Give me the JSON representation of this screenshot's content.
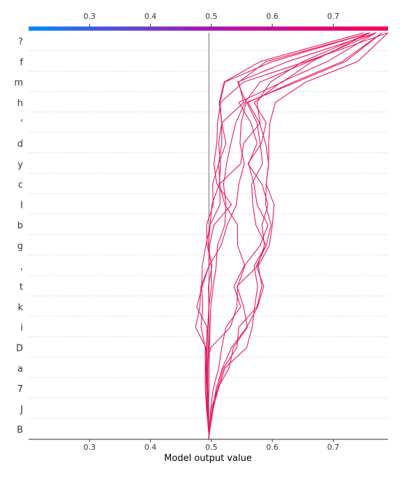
{
  "chart_data": {
    "type": "line",
    "title": "",
    "xlabel": "Model output value",
    "ylabel": "",
    "xlim": [
      0.2,
      0.79
    ],
    "x_ticks": [
      "0.3",
      "0.4",
      "0.5",
      "0.6",
      "0.7"
    ],
    "x_tick_values": [
      0.3,
      0.4,
      0.5,
      0.6,
      0.7
    ],
    "base_value": 0.496,
    "features": [
      "?",
      "f",
      "m",
      "h",
      "'",
      "d",
      "y",
      "c",
      "I",
      "b",
      "g",
      ",",
      "t",
      "k",
      "i",
      "D",
      "a",
      "7",
      "J",
      "B"
    ],
    "series_color": "#e8155f",
    "colorbar": {
      "colors": [
        "#008bfb",
        "#5a4fd6",
        "#a818b3",
        "#d80a88",
        "#ff0052"
      ],
      "range": [
        0.2,
        0.79
      ]
    },
    "series": [
      {
        "values": [
          0.496,
          0.494,
          0.496,
          0.496,
          0.497,
          0.498,
          0.499,
          0.503,
          0.508,
          0.51,
          0.522,
          0.524,
          0.52,
          0.525,
          0.532,
          0.54,
          0.555,
          0.58,
          0.66,
          0.77
        ]
      },
      {
        "values": [
          0.496,
          0.495,
          0.494,
          0.494,
          0.495,
          0.496,
          0.496,
          0.5,
          0.5,
          0.495,
          0.498,
          0.514,
          0.514,
          0.512,
          0.524,
          0.517,
          0.514,
          0.522,
          0.6,
          0.76
        ]
      },
      {
        "values": [
          0.496,
          0.495,
          0.493,
          0.493,
          0.493,
          0.494,
          0.496,
          0.495,
          0.501,
          0.493,
          0.492,
          0.503,
          0.502,
          0.512,
          0.517,
          0.517,
          0.513,
          0.521,
          0.58,
          0.75
        ]
      },
      {
        "values": [
          0.496,
          0.493,
          0.49,
          0.49,
          0.49,
          0.483,
          0.486,
          0.484,
          0.485,
          0.491,
          0.498,
          0.501,
          0.513,
          0.515,
          0.512,
          0.517,
          0.553,
          0.545,
          0.59,
          0.76
        ]
      },
      {
        "values": [
          0.496,
          0.494,
          0.492,
          0.491,
          0.492,
          0.493,
          0.476,
          0.485,
          0.496,
          0.516,
          0.526,
          0.541,
          0.545,
          0.554,
          0.547,
          0.549,
          0.557,
          0.543,
          0.625,
          0.77
        ]
      },
      {
        "values": [
          0.496,
          0.493,
          0.493,
          0.492,
          0.491,
          0.474,
          0.481,
          0.483,
          0.496,
          0.497,
          0.504,
          0.533,
          0.509,
          0.504,
          0.509,
          0.51,
          0.515,
          0.553,
          0.655,
          0.79
        ]
      },
      {
        "values": [
          0.496,
          0.492,
          0.49,
          0.49,
          0.499,
          0.531,
          0.542,
          0.543,
          0.555,
          0.543,
          0.543,
          0.522,
          0.513,
          0.548,
          0.553,
          0.58,
          0.575,
          0.597,
          0.65,
          0.76
        ]
      },
      {
        "values": [
          0.496,
          0.499,
          0.503,
          0.512,
          0.517,
          0.524,
          0.548,
          0.537,
          0.554,
          0.58,
          0.593,
          0.575,
          0.57,
          0.561,
          0.575,
          0.565,
          0.545,
          0.617,
          0.665,
          0.76
        ]
      },
      {
        "values": [
          0.496,
          0.5,
          0.51,
          0.529,
          0.536,
          0.559,
          0.553,
          0.542,
          0.576,
          0.587,
          0.583,
          0.593,
          0.583,
          0.56,
          0.582,
          0.59,
          0.57,
          0.615,
          0.69,
          0.77
        ]
      },
      {
        "values": [
          0.496,
          0.502,
          0.512,
          0.522,
          0.558,
          0.567,
          0.571,
          0.576,
          0.57,
          0.59,
          0.573,
          0.568,
          0.566,
          0.584,
          0.58,
          0.575,
          0.558,
          0.64,
          0.72,
          0.78
        ]
      },
      {
        "values": [
          0.496,
          0.502,
          0.508,
          0.518,
          0.533,
          0.558,
          0.576,
          0.586,
          0.574,
          0.59,
          0.598,
          0.589,
          0.59,
          0.594,
          0.589,
          0.579,
          0.56,
          0.635,
          0.715,
          0.78
        ]
      },
      {
        "values": [
          0.496,
          0.503,
          0.51,
          0.52,
          0.542,
          0.545,
          0.575,
          0.583,
          0.577,
          0.595,
          0.6,
          0.603,
          0.59,
          0.594,
          0.594,
          0.596,
          0.605,
          0.655,
          0.74,
          0.79
        ]
      }
    ]
  }
}
